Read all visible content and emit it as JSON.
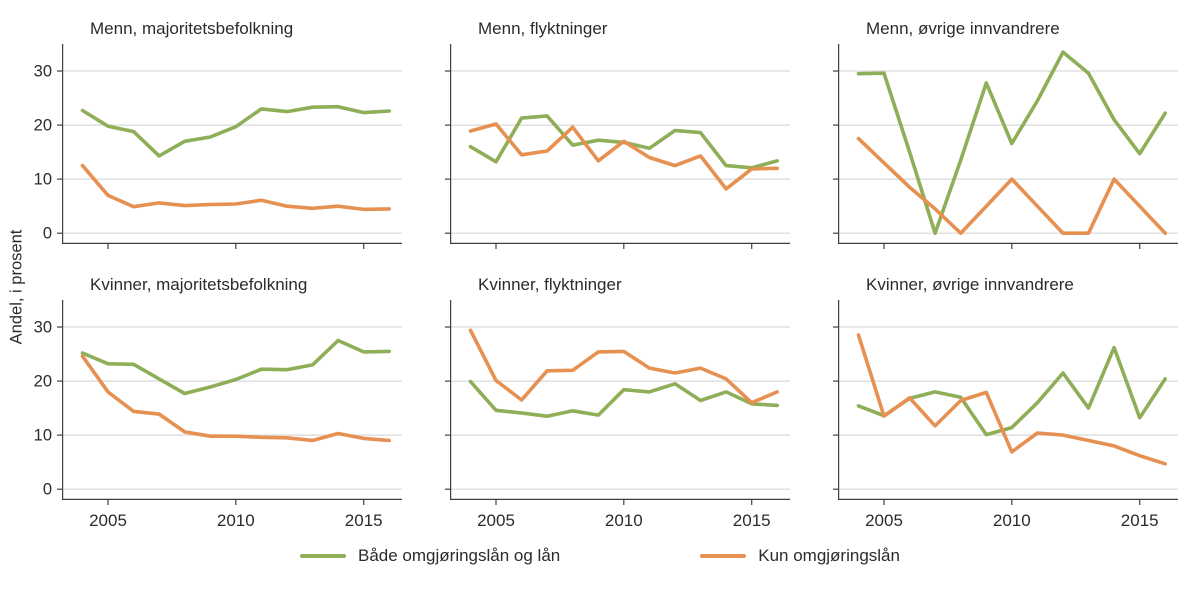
{
  "ylabel": "Andel, i prosent",
  "colors": {
    "green": "#8fae58",
    "orange": "#e69051",
    "grid": "#d9d9d9",
    "axis": "#404040",
    "text": "#2b2b2b"
  },
  "legend": [
    {
      "label": "Både omgjøringslån og lån",
      "color_key": "green"
    },
    {
      "label": "Kun omgjøringslån",
      "color_key": "orange"
    }
  ],
  "axes": {
    "x_ticks": [
      2005,
      2010,
      2015
    ],
    "y_ticks": [
      0,
      10,
      20,
      30
    ],
    "x_range": [
      2003.2,
      2016.5
    ],
    "y_range": [
      -2,
      35
    ],
    "grid": true
  },
  "chart_data": [
    {
      "type": "line",
      "title": "Menn, majoritetsbefolkning",
      "x": [
        2004,
        2005,
        2006,
        2007,
        2008,
        2009,
        2010,
        2011,
        2012,
        2013,
        2014,
        2015,
        2016
      ],
      "series": [
        {
          "name": "Både omgjøringslån og lån",
          "color_key": "green",
          "values": [
            22.7,
            19.8,
            18.8,
            14.3,
            17.0,
            17.8,
            19.7,
            23.0,
            22.5,
            23.3,
            23.4,
            22.3,
            22.6
          ]
        },
        {
          "name": "Kun omgjøringslån",
          "color_key": "orange",
          "values": [
            12.5,
            7.0,
            4.9,
            5.6,
            5.1,
            5.3,
            5.4,
            6.1,
            5.0,
            4.6,
            5.0,
            4.4,
            4.5
          ]
        }
      ]
    },
    {
      "type": "line",
      "title": "Menn, flyktninger",
      "x": [
        2004,
        2005,
        2006,
        2007,
        2008,
        2009,
        2010,
        2011,
        2012,
        2013,
        2014,
        2015,
        2016
      ],
      "series": [
        {
          "name": "Både omgjøringslån og lån",
          "color_key": "green",
          "values": [
            16.0,
            13.2,
            21.3,
            21.7,
            16.3,
            17.2,
            16.8,
            15.7,
            19.0,
            18.6,
            12.5,
            12.1,
            13.4
          ]
        },
        {
          "name": "Kun omgjøringslån",
          "color_key": "orange",
          "values": [
            18.9,
            20.2,
            14.5,
            15.2,
            19.6,
            13.4,
            17.0,
            14.0,
            12.5,
            14.3,
            8.2,
            11.9,
            12.0
          ]
        }
      ]
    },
    {
      "type": "line",
      "title": "Menn, øvrige innvandrere",
      "x": [
        2004,
        2005,
        2006,
        2007,
        2008,
        2009,
        2010,
        2011,
        2012,
        2013,
        2014,
        2015,
        2016
      ],
      "series": [
        {
          "name": "Både omgjøringslån og lån",
          "color_key": "green",
          "values": [
            29.5,
            29.6,
            15.0,
            0.0,
            13.5,
            27.8,
            16.6,
            24.5,
            33.5,
            29.6,
            21.0,
            14.7,
            22.2
          ]
        },
        {
          "name": "Kun omgjøringslån",
          "color_key": "orange",
          "values": [
            17.5,
            13.0,
            8.5,
            4.5,
            0.0,
            5.0,
            10.0,
            5.0,
            0.0,
            0.0,
            10.0,
            5.0,
            0.0
          ]
        }
      ]
    },
    {
      "type": "line",
      "title": "Kvinner, majoritetsbefolkning",
      "x": [
        2004,
        2005,
        2006,
        2007,
        2008,
        2009,
        2010,
        2011,
        2012,
        2013,
        2014,
        2015,
        2016
      ],
      "series": [
        {
          "name": "Både omgjøringslån og lån",
          "color_key": "green",
          "values": [
            25.2,
            23.2,
            23.1,
            20.4,
            17.7,
            18.9,
            20.3,
            22.2,
            22.1,
            23.0,
            27.5,
            25.4,
            25.5
          ]
        },
        {
          "name": "Kun omgjøringslån",
          "color_key": "orange",
          "values": [
            24.6,
            18.0,
            14.4,
            13.9,
            10.6,
            9.8,
            9.8,
            9.6,
            9.5,
            9.0,
            10.3,
            9.4,
            9.0
          ]
        }
      ]
    },
    {
      "type": "line",
      "title": "Kvinner, flyktninger",
      "x": [
        2004,
        2005,
        2006,
        2007,
        2008,
        2009,
        2010,
        2011,
        2012,
        2013,
        2014,
        2015,
        2016
      ],
      "series": [
        {
          "name": "Både omgjøringslån og lån",
          "color_key": "green",
          "values": [
            19.9,
            14.6,
            14.1,
            13.5,
            14.5,
            13.7,
            18.4,
            18.0,
            19.5,
            16.4,
            18.0,
            15.8,
            15.5
          ]
        },
        {
          "name": "Kun omgjøringslån",
          "color_key": "orange",
          "values": [
            29.4,
            20.1,
            16.5,
            21.9,
            22.0,
            25.4,
            25.5,
            22.4,
            21.5,
            22.4,
            20.4,
            16.0,
            18.0
          ]
        }
      ]
    },
    {
      "type": "line",
      "title": "Kvinner, øvrige innvandrere",
      "x": [
        2004,
        2005,
        2006,
        2007,
        2008,
        2009,
        2010,
        2011,
        2012,
        2013,
        2014,
        2015,
        2016
      ],
      "series": [
        {
          "name": "Både omgjøringslån og lån",
          "color_key": "green",
          "values": [
            15.4,
            13.6,
            16.8,
            18.0,
            17.0,
            10.1,
            11.4,
            16.0,
            21.5,
            15.0,
            26.2,
            13.2,
            20.4
          ]
        },
        {
          "name": "Kun omgjøringslån",
          "color_key": "orange",
          "values": [
            28.5,
            13.5,
            16.9,
            11.7,
            16.4,
            17.9,
            6.9,
            10.4,
            10.0,
            9.0,
            8.0,
            6.2,
            4.7
          ]
        }
      ]
    }
  ]
}
